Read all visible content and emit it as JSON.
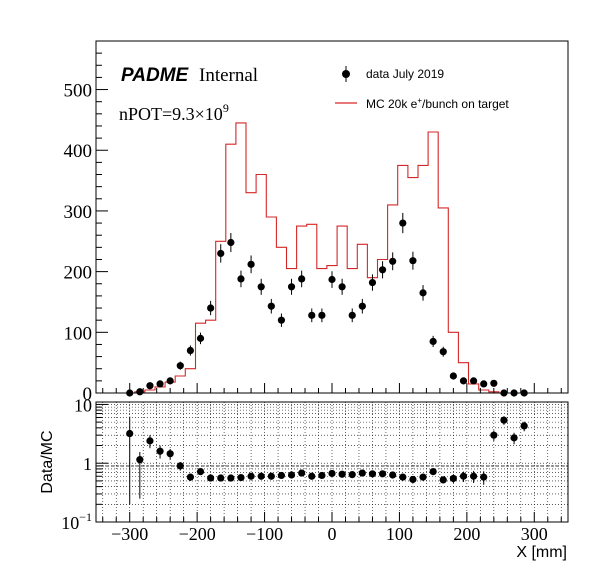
{
  "chart_data": {
    "type": "histogram",
    "top_panel": {
      "logo": {
        "bold": "PADME",
        "normal": "Internal"
      },
      "npot": {
        "prefix": "nPOT=9.3×10",
        "exponent": "9"
      },
      "ylim": [
        0,
        580
      ],
      "y_ticks": [
        "0",
        "100",
        "200",
        "300",
        "400",
        "500"
      ],
      "legend": {
        "placement": "top-right",
        "entries": [
          {
            "label": "data July 2019",
            "style": "marker"
          },
          {
            "label_parts": [
              "MC 20k e",
              "+",
              "/bunch on target"
            ],
            "style": "line"
          }
        ]
      },
      "data_series": {
        "label": "data July 2019",
        "color": "#000000",
        "x": [
          -300,
          -285,
          -270,
          -255,
          -240,
          -225,
          -210,
          -195,
          -180,
          -165,
          -150,
          -135,
          -120,
          -105,
          -90,
          -75,
          -60,
          -45,
          -30,
          -15,
          0,
          15,
          30,
          45,
          60,
          75,
          90,
          105,
          120,
          135,
          150,
          165,
          180,
          195,
          210,
          225,
          240,
          255,
          270,
          285
        ],
        "y": [
          0,
          2,
          12,
          15,
          20,
          45,
          70,
          90,
          140,
          230,
          248,
          188,
          212,
          175,
          143,
          120,
          175,
          188,
          128,
          128,
          187,
          175,
          128,
          143,
          182,
          203,
          217,
          280,
          218,
          165,
          85,
          68,
          28,
          20,
          20,
          15,
          16,
          0,
          0,
          0
        ],
        "err": [
          1.5,
          1.5,
          3.5,
          4,
          4.5,
          6.7,
          8.4,
          9.5,
          11.8,
          15.2,
          15.7,
          13.7,
          14.6,
          13.2,
          12,
          11,
          13.2,
          13.7,
          11.3,
          11.3,
          13.7,
          13.2,
          11.3,
          12,
          13.5,
          14.2,
          14.7,
          16.7,
          14.8,
          12.8,
          9.2,
          8.2,
          5.3,
          4.5,
          4.5,
          3.9,
          4,
          0,
          0,
          0
        ]
      },
      "mc_series": {
        "label": "MC 20k e+/bunch on target",
        "color": "#d62728",
        "bin_edges": [
          -345,
          -337.5,
          -322.5,
          -307.5,
          -292.5,
          -277.5,
          -262.5,
          -247.5,
          -232.5,
          -217.5,
          -202.5,
          -187.5,
          -172.5,
          -157.5,
          -142.5,
          -127.5,
          -112.5,
          -97.5,
          -82.5,
          -67.5,
          -52.5,
          -37.5,
          -22.5,
          -7.5,
          7.5,
          22.5,
          37.5,
          52.5,
          67.5,
          82.5,
          97.5,
          112.5,
          127.5,
          142.5,
          157.5,
          172.5,
          187.5,
          202.5,
          217.5,
          232.5,
          247.5,
          262.5,
          277.5,
          292.5,
          307.5,
          322.5,
          337.5,
          345
        ],
        "values": [
          0,
          0,
          0,
          0,
          2,
          5,
          10,
          18,
          28,
          40,
          115,
          120,
          250,
          410,
          445,
          330,
          360,
          290,
          240,
          205,
          275,
          278,
          205,
          210,
          275,
          205,
          245,
          190,
          220,
          310,
          375,
          355,
          375,
          430,
          305,
          100,
          50,
          15,
          5,
          2,
          0,
          0,
          0,
          0,
          0,
          0,
          0
        ]
      }
    },
    "bottom_panel": {
      "ylabel": "Data/MC",
      "yscale": "log",
      "ylim": [
        0.1,
        11
      ],
      "y_tick_labels": [
        {
          "base": "10",
          "exp": "−1",
          "value": 0.1
        },
        {
          "base": "1",
          "exp": "",
          "value": 1
        },
        {
          "base": "10",
          "exp": "",
          "value": 10
        }
      ],
      "grid": true,
      "ratio": {
        "x": [
          -300,
          -285,
          -270,
          -255,
          -240,
          -225,
          -210,
          -195,
          -180,
          -165,
          -150,
          -135,
          -120,
          -105,
          -90,
          -75,
          -60,
          -45,
          -30,
          -15,
          0,
          15,
          30,
          45,
          60,
          75,
          90,
          105,
          120,
          135,
          150,
          165,
          180,
          195,
          210,
          225,
          240,
          255,
          270,
          285
        ],
        "y": [
          3.2,
          1.15,
          2.4,
          1.6,
          1.45,
          0.9,
          0.58,
          0.72,
          0.56,
          0.56,
          0.56,
          0.57,
          0.6,
          0.6,
          0.6,
          0.62,
          0.63,
          0.68,
          0.6,
          0.62,
          0.67,
          0.65,
          0.64,
          0.68,
          0.66,
          0.66,
          0.63,
          0.58,
          0.53,
          0.58,
          0.72,
          0.52,
          0.55,
          0.6,
          0.6,
          0.58,
          3.0,
          5.4,
          2.7,
          4.3
        ],
        "err_low": [
          3.0,
          0.9,
          0.6,
          0.4,
          0.3,
          0.15,
          0.08,
          0.07,
          0.05,
          0.04,
          0.04,
          0.04,
          0.04,
          0.04,
          0.05,
          0.05,
          0.04,
          0.04,
          0.05,
          0.05,
          0.04,
          0.04,
          0.05,
          0.05,
          0.04,
          0.04,
          0.04,
          0.04,
          0.04,
          0.04,
          0.06,
          0.06,
          0.09,
          0.12,
          0.14,
          0.15,
          0.6,
          0.9,
          0.6,
          0.8
        ],
        "err_high": [
          3.0,
          0.4,
          0.6,
          0.4,
          0.3,
          0.15,
          0.08,
          0.07,
          0.05,
          0.04,
          0.04,
          0.04,
          0.04,
          0.04,
          0.05,
          0.05,
          0.04,
          0.04,
          0.05,
          0.05,
          0.04,
          0.04,
          0.05,
          0.05,
          0.04,
          0.04,
          0.04,
          0.04,
          0.04,
          0.04,
          0.06,
          0.06,
          0.09,
          0.12,
          0.14,
          0.15,
          0.6,
          0.9,
          0.6,
          0.8
        ]
      }
    },
    "x_axis": {
      "label": "X [mm]",
      "xlim": [
        -350,
        350
      ],
      "ticks": [
        -300,
        -200,
        -100,
        0,
        100,
        200,
        300
      ],
      "tick_labels": [
        "−300",
        "−200",
        "−100",
        "0",
        "100",
        "200",
        "300"
      ]
    }
  }
}
